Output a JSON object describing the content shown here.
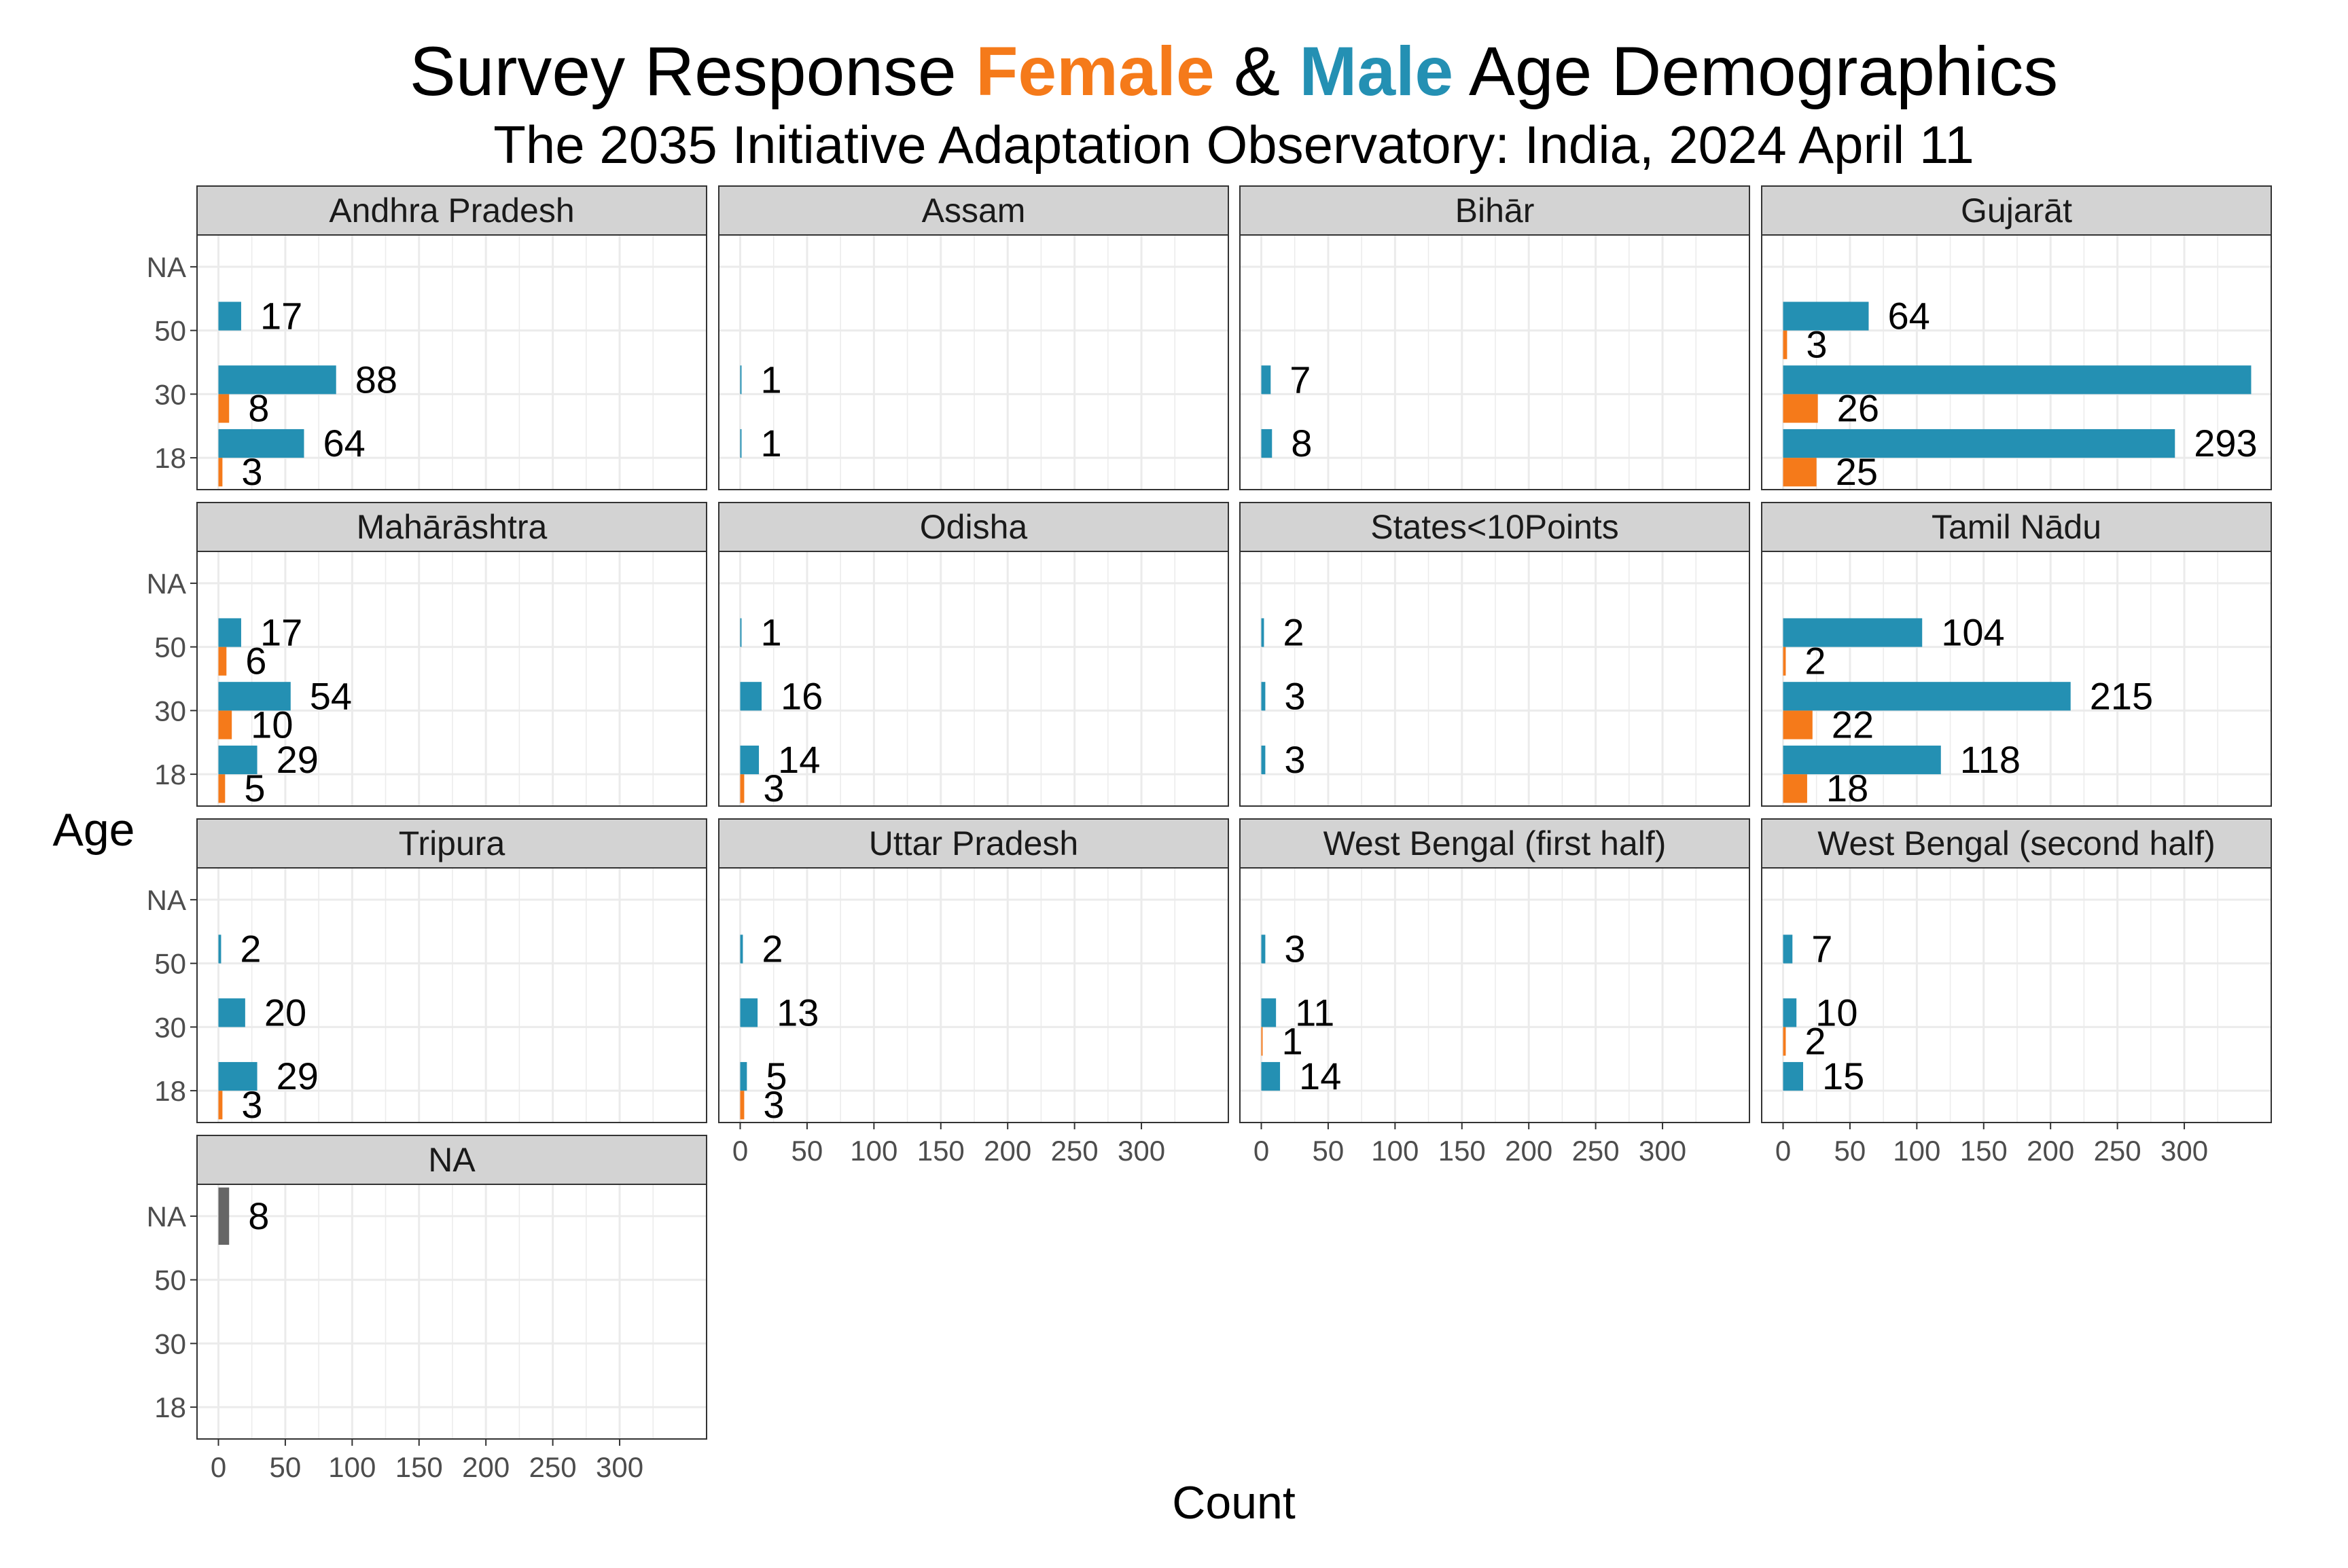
{
  "title": {
    "prefix": "Survey Response ",
    "female": "Female",
    "amp": " & ",
    "male": "Male",
    "suffix": " Age Demographics"
  },
  "subtitle": "The 2035 Initiative Adaptation Observatory: India, 2024 April 11",
  "colors": {
    "female": "#F57A1A",
    "male": "#2490B3",
    "na": "#666666",
    "strip_bg": "#D3D3D3",
    "grid": "#EBEBEB",
    "panel_border": "#333333"
  },
  "chart_data": {
    "type": "bar",
    "orientation": "horizontal",
    "facet_wrap_columns": 4,
    "xlabel": "Count",
    "ylabel": "Age",
    "y_categories": [
      "18",
      "30",
      "50",
      "NA"
    ],
    "x_ticks": [
      0,
      50,
      100,
      150,
      200,
      250,
      300
    ],
    "xlim": [
      -16,
      365
    ],
    "grid": true,
    "panels": [
      {
        "name": "Andhra Pradesh",
        "bars": [
          {
            "age": "18",
            "sex": "female",
            "value": 3,
            "label": "3"
          },
          {
            "age": "18",
            "sex": "male",
            "value": 64,
            "label": "64"
          },
          {
            "age": "30",
            "sex": "female",
            "value": 8,
            "label": "8"
          },
          {
            "age": "30",
            "sex": "male",
            "value": 88,
            "label": "88"
          },
          {
            "age": "50",
            "sex": "male",
            "value": 17,
            "label": "17"
          }
        ]
      },
      {
        "name": "Assam",
        "bars": [
          {
            "age": "18",
            "sex": "male",
            "value": 1,
            "label": "1"
          },
          {
            "age": "30",
            "sex": "male",
            "value": 1,
            "label": "1"
          }
        ]
      },
      {
        "name": "Bihār",
        "bars": [
          {
            "age": "18",
            "sex": "male",
            "value": 8,
            "label": "8"
          },
          {
            "age": "30",
            "sex": "male",
            "value": 7,
            "label": "7"
          }
        ]
      },
      {
        "name": "Gujarāt",
        "bars": [
          {
            "age": "18",
            "sex": "female",
            "value": 25,
            "label": "25"
          },
          {
            "age": "18",
            "sex": "male",
            "value": 293,
            "label": "293"
          },
          {
            "age": "30",
            "sex": "female",
            "value": 26,
            "label": "26"
          },
          {
            "age": "30",
            "sex": "male",
            "value": 350,
            "label": ""
          },
          {
            "age": "50",
            "sex": "female",
            "value": 3,
            "label": "3"
          },
          {
            "age": "50",
            "sex": "male",
            "value": 64,
            "label": "64"
          }
        ]
      },
      {
        "name": "Mahārāshtra",
        "bars": [
          {
            "age": "18",
            "sex": "female",
            "value": 5,
            "label": "5"
          },
          {
            "age": "18",
            "sex": "male",
            "value": 29,
            "label": "29"
          },
          {
            "age": "30",
            "sex": "female",
            "value": 10,
            "label": "10"
          },
          {
            "age": "30",
            "sex": "male",
            "value": 54,
            "label": "54"
          },
          {
            "age": "50",
            "sex": "female",
            "value": 6,
            "label": "6"
          },
          {
            "age": "50",
            "sex": "male",
            "value": 17,
            "label": "17"
          }
        ]
      },
      {
        "name": "Odisha",
        "bars": [
          {
            "age": "18",
            "sex": "female",
            "value": 3,
            "label": "3"
          },
          {
            "age": "18",
            "sex": "male",
            "value": 14,
            "label": "14"
          },
          {
            "age": "30",
            "sex": "male",
            "value": 16,
            "label": "16"
          },
          {
            "age": "50",
            "sex": "male",
            "value": 1,
            "label": "1"
          }
        ]
      },
      {
        "name": "States<10Points",
        "bars": [
          {
            "age": "18",
            "sex": "male",
            "value": 3,
            "label": "3"
          },
          {
            "age": "30",
            "sex": "male",
            "value": 3,
            "label": "3"
          },
          {
            "age": "50",
            "sex": "male",
            "value": 2,
            "label": "2"
          }
        ]
      },
      {
        "name": "Tamil Nādu",
        "bars": [
          {
            "age": "18",
            "sex": "female",
            "value": 18,
            "label": "18"
          },
          {
            "age": "18",
            "sex": "male",
            "value": 118,
            "label": "118"
          },
          {
            "age": "30",
            "sex": "female",
            "value": 22,
            "label": "22"
          },
          {
            "age": "30",
            "sex": "male",
            "value": 215,
            "label": "215"
          },
          {
            "age": "50",
            "sex": "female",
            "value": 2,
            "label": "2"
          },
          {
            "age": "50",
            "sex": "male",
            "value": 104,
            "label": "104"
          }
        ]
      },
      {
        "name": "Tripura",
        "bars": [
          {
            "age": "18",
            "sex": "female",
            "value": 3,
            "label": "3"
          },
          {
            "age": "18",
            "sex": "male",
            "value": 29,
            "label": "29"
          },
          {
            "age": "30",
            "sex": "male",
            "value": 20,
            "label": "20"
          },
          {
            "age": "50",
            "sex": "male",
            "value": 2,
            "label": "2"
          }
        ]
      },
      {
        "name": "Uttar Pradesh",
        "bars": [
          {
            "age": "18",
            "sex": "female",
            "value": 3,
            "label": "3"
          },
          {
            "age": "18",
            "sex": "male",
            "value": 5,
            "label": "5"
          },
          {
            "age": "30",
            "sex": "male",
            "value": 13,
            "label": "13"
          },
          {
            "age": "50",
            "sex": "male",
            "value": 2,
            "label": "2"
          }
        ]
      },
      {
        "name": "West Bengal  (first half)",
        "bars": [
          {
            "age": "18",
            "sex": "male",
            "value": 14,
            "label": "14"
          },
          {
            "age": "30",
            "sex": "female",
            "value": 1,
            "label": "1"
          },
          {
            "age": "30",
            "sex": "male",
            "value": 11,
            "label": "11"
          },
          {
            "age": "50",
            "sex": "male",
            "value": 3,
            "label": "3"
          }
        ]
      },
      {
        "name": "West Bengal  (second half)",
        "bars": [
          {
            "age": "18",
            "sex": "male",
            "value": 15,
            "label": "15"
          },
          {
            "age": "30",
            "sex": "female",
            "value": 2,
            "label": "2"
          },
          {
            "age": "30",
            "sex": "male",
            "value": 10,
            "label": "10"
          },
          {
            "age": "50",
            "sex": "male",
            "value": 7,
            "label": "7"
          }
        ]
      },
      {
        "name": "NA",
        "bars": [
          {
            "age": "NA",
            "sex": "na",
            "value": 8,
            "label": "8"
          }
        ]
      }
    ]
  }
}
